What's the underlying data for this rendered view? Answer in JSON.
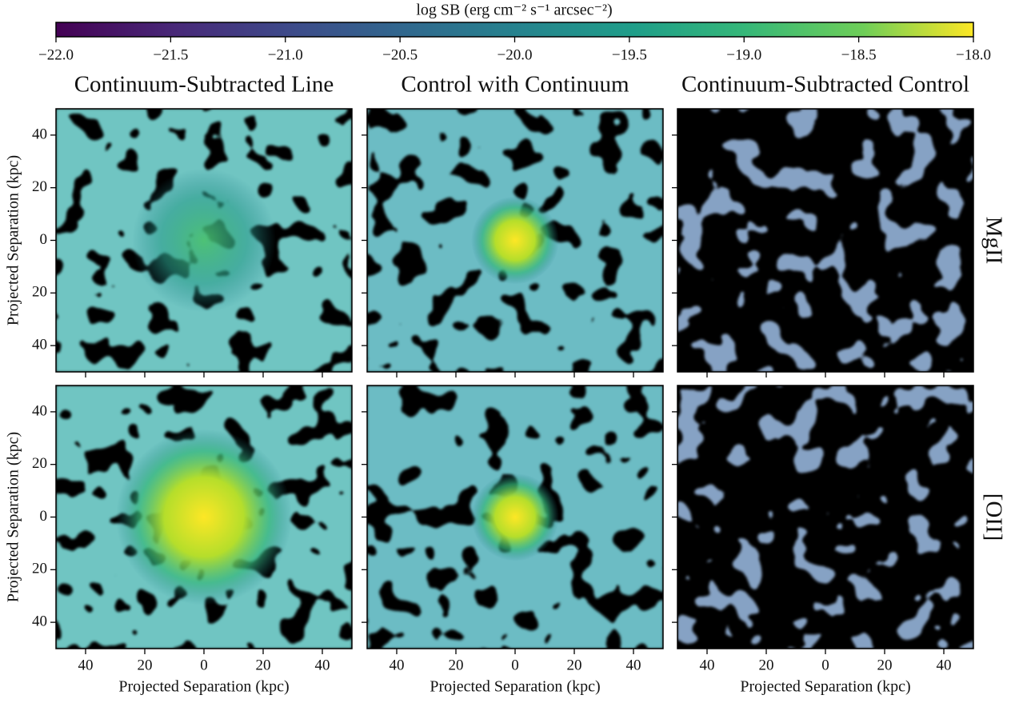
{
  "chart_data": {
    "type": "heatmap-grid",
    "colorbar": {
      "label": "log SB (erg cm⁻² s⁻¹ arcsec⁻²)",
      "lim": [
        -22,
        -18
      ],
      "ticks": [
        {
          "value": -22,
          "label": "−22.0"
        },
        {
          "value": -21.5,
          "label": "−21.5"
        },
        {
          "value": -21,
          "label": "−21.0"
        },
        {
          "value": -20.5,
          "label": "−20.5"
        },
        {
          "value": -20,
          "label": "−20.0"
        },
        {
          "value": -19.5,
          "label": "−19.5"
        },
        {
          "value": -19,
          "label": "−19.0"
        },
        {
          "value": -18.5,
          "label": "−18.5"
        },
        {
          "value": -18,
          "label": "−18.0"
        }
      ]
    },
    "column_titles": [
      "Continuum-Subtracted Line",
      "Control with Continuum",
      "Continuum-Subtracted Control"
    ],
    "row_labels": [
      "MgII",
      "[OII]"
    ],
    "xlabel": "Projected Separation (kpc)",
    "ylabel": "Projected Separation (kpc)",
    "xlim": [
      -50,
      50
    ],
    "ylim": [
      -50,
      50
    ],
    "xticks": [
      {
        "value": -40,
        "label": "40"
      },
      {
        "value": -20,
        "label": "20"
      },
      0,
      20,
      40
    ],
    "yticks": [
      40,
      20,
      0,
      {
        "value": -20,
        "label": "20"
      },
      {
        "value": -40,
        "label": "40"
      }
    ]
  }
}
